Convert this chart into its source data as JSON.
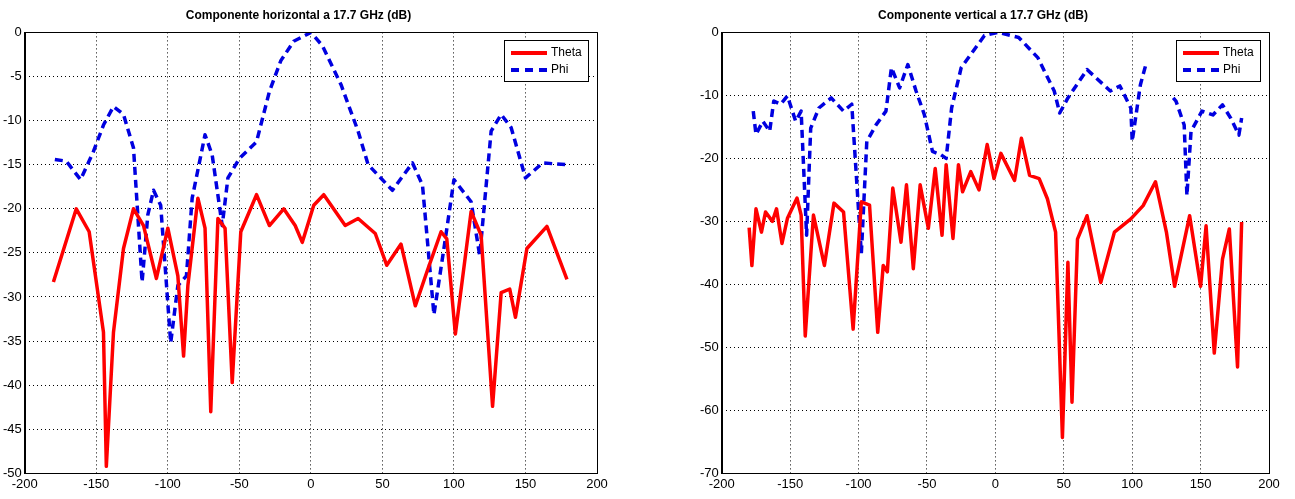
{
  "chart_data": [
    {
      "type": "line",
      "title": "Componente horizontal a 17.7 GHz (dB)",
      "xlim": [
        -200,
        200
      ],
      "xticks": [
        -200,
        -150,
        -100,
        -50,
        0,
        50,
        100,
        150,
        200
      ],
      "ylim": [
        -50,
        0
      ],
      "yticks": [
        -50,
        -45,
        -40,
        -35,
        -30,
        -25,
        -20,
        -15,
        -10,
        -5,
        0
      ],
      "grid": true,
      "legend": "top right",
      "marker": "none",
      "series": [
        {
          "name": "Theta",
          "color": "#ff0000",
          "line_style": "solid",
          "x": [
            -180,
            -164,
            -155,
            -145,
            -143,
            -138,
            -131,
            -124,
            -117,
            -108,
            -100,
            -93,
            -89,
            -86,
            -79,
            -74,
            -70,
            -65,
            -60,
            -55,
            -49,
            -38,
            -29,
            -19,
            -11,
            -6,
            2,
            9,
            24,
            33,
            45,
            53,
            63,
            73,
            81,
            91,
            95,
            101,
            112,
            119,
            127,
            133,
            139,
            143,
            151,
            165,
            179
          ],
          "values": [
            -28.3,
            -20,
            -22.6,
            -34,
            -49.2,
            -34,
            -24.5,
            -20,
            -21.9,
            -27.9,
            -22.2,
            -27.6,
            -36.7,
            -28.7,
            -18.8,
            -22.2,
            -43,
            -21.1,
            -22.2,
            -39.7,
            -22.6,
            -18.4,
            -21.9,
            -20,
            -21.9,
            -23.8,
            -19.6,
            -18.4,
            -21.9,
            -21.1,
            -22.8,
            -26.4,
            -24,
            -31,
            -27.2,
            -22.6,
            -23.4,
            -34.2,
            -20.3,
            -23,
            -42.4,
            -29.5,
            -29.1,
            -32.3,
            -24.5,
            -22,
            -28
          ]
        },
        {
          "name": "Phi",
          "color": "#0000e0",
          "line_style": "dashed",
          "x": [
            -179,
            -171,
            -161,
            -152,
            -145,
            -138,
            -131,
            -124,
            -118,
            -114,
            -110,
            -105,
            -98,
            -93,
            -87,
            -83,
            -74,
            -69,
            -62,
            -58,
            -50,
            -38,
            -29,
            -21,
            -12,
            0,
            8,
            21,
            33,
            40,
            57,
            71,
            78,
            86,
            93,
            100,
            112,
            118,
            126,
            133,
            140,
            150,
            162,
            179
          ],
          "values": [
            -14.4,
            -14.6,
            -16.7,
            -13.5,
            -10.5,
            -8.4,
            -9.3,
            -13.1,
            -28.3,
            -20.7,
            -17.9,
            -19.6,
            -35.2,
            -28.7,
            -27.6,
            -18.8,
            -11.6,
            -13.9,
            -21.9,
            -16.5,
            -14.3,
            -12.4,
            -6.7,
            -3.2,
            -1,
            0,
            -1.5,
            -5.9,
            -11.2,
            -15,
            -17.9,
            -14.8,
            -17.3,
            -32,
            -24.5,
            -16.7,
            -19.2,
            -25.3,
            -11.2,
            -9.3,
            -10.8,
            -16.5,
            -14.8,
            -15
          ]
        }
      ]
    },
    {
      "type": "line",
      "title": "Componente vertical a 17.7 GHz (dB)",
      "xlim": [
        -200,
        200
      ],
      "xticks": [
        -200,
        -150,
        -100,
        -50,
        0,
        50,
        100,
        150,
        200
      ],
      "ylim": [
        -70,
        0
      ],
      "yticks": [
        -70,
        -60,
        -50,
        -40,
        -30,
        -20,
        -10,
        0
      ],
      "grid": true,
      "legend": "top right",
      "marker": "none",
      "series": [
        {
          "name": "Theta",
          "color": "#ff0000",
          "line_style": "solid",
          "x": [
            -180,
            -178,
            -175,
            -171,
            -168,
            -163,
            -160,
            -156,
            -152,
            -145,
            -142,
            -139,
            -133,
            -125,
            -118,
            -111,
            -104,
            -98,
            -92,
            -86,
            -82,
            -79,
            -75,
            -69,
            -65,
            -60,
            -55,
            -49,
            -44,
            -39,
            -36,
            -31,
            -27,
            -24,
            -18,
            -12,
            -6,
            -1,
            4,
            14,
            19,
            25,
            32,
            38,
            44,
            49,
            53,
            56,
            60,
            67,
            77,
            87,
            99,
            108,
            117,
            125,
            131,
            142,
            150,
            154,
            160,
            166,
            171,
            177,
            180
          ],
          "values": [
            -31,
            -37,
            -28,
            -31.7,
            -28.5,
            -30,
            -28,
            -33.5,
            -29.5,
            -26.3,
            -29,
            -48.2,
            -29,
            -37,
            -27.1,
            -28.5,
            -47.1,
            -26.9,
            -27.4,
            -47.6,
            -37,
            -38,
            -24.7,
            -33.3,
            -24.2,
            -37.5,
            -24.2,
            -31.1,
            -21.6,
            -32.2,
            -21,
            -32.7,
            -21,
            -25.3,
            -22.1,
            -25,
            -17.8,
            -23.2,
            -19.2,
            -23.5,
            -16.8,
            -22.7,
            -23.2,
            -26.4,
            -31.7,
            -64.3,
            -36.5,
            -58.7,
            -32.8,
            -29.1,
            -39.7,
            -31.7,
            -29.6,
            -27.5,
            -23.7,
            -31.7,
            -40.3,
            -29.1,
            -40.3,
            -30.7,
            -50.9,
            -36,
            -31.2,
            -53.1,
            -30.1
          ]
        },
        {
          "name": "Phi",
          "color": "#0000e0",
          "line_style": "dashed",
          "x": [
            -177,
            -175,
            -170,
            -165,
            -162,
            -157,
            -152,
            -146,
            -142,
            -138,
            -135,
            -129,
            -120,
            -111,
            -105,
            -98,
            -94,
            -87,
            -80,
            -76,
            -70,
            -64,
            -58,
            -52,
            -46,
            -40,
            -36,
            -32,
            -25,
            -18,
            -8,
            2,
            17,
            31,
            43,
            47,
            53,
            67,
            84,
            91,
            99,
            100,
            106,
            110,
            120,
            130,
            132,
            138,
            140,
            143,
            151,
            159,
            166,
            172,
            178,
            180
          ],
          "values": [
            -12.5,
            -16.2,
            -14.1,
            -15.7,
            -10.9,
            -11.4,
            -10.1,
            -14.1,
            -12.5,
            -32.2,
            -15.2,
            -12,
            -10.4,
            -12.5,
            -11.4,
            -35.1,
            -17.3,
            -14.6,
            -12.5,
            -5.6,
            -8.8,
            -5.1,
            -9.3,
            -13,
            -18.9,
            -19.4,
            -20,
            -12,
            -5.6,
            -3.5,
            -0.5,
            0,
            -0.8,
            -4,
            -9.3,
            -12.8,
            -10.4,
            -5.9,
            -9.3,
            -8.5,
            -12,
            -17.3,
            -8.3,
            -5.1,
            null,
            -10.4,
            -10.9,
            -14.7,
            -25.9,
            -15.7,
            -12.5,
            -13.1,
            -11.5,
            -13.6,
            -16.3,
            -13.6
          ]
        }
      ]
    }
  ]
}
